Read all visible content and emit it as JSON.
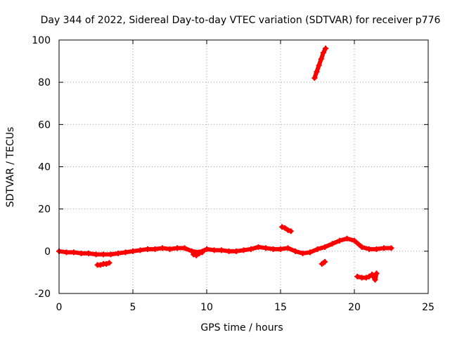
{
  "chart_data": {
    "type": "scatter",
    "title": "Day 344 of 2022, Sidereal Day-to-day VTEC variation (SDTVAR) for receiver p776",
    "xlabel": "GPS time / hours",
    "ylabel": "SDTVAR / TECUs",
    "xlim": [
      0,
      25
    ],
    "ylim": [
      -20,
      100
    ],
    "xticks": [
      0,
      5,
      10,
      15,
      20,
      25
    ],
    "yticks": [
      -20,
      0,
      20,
      40,
      60,
      80,
      100
    ],
    "grid": true,
    "marker": "plus",
    "series_color": "#ff0000",
    "segments": [
      {
        "name": "main-trace",
        "x": [
          0.0,
          0.5,
          1.0,
          1.5,
          2.0,
          2.5,
          3.0,
          3.5,
          4.0,
          4.5,
          5.0,
          5.5,
          6.0,
          6.5,
          7.0,
          7.5,
          8.0,
          8.5,
          9.0,
          9.5,
          10.0,
          10.5,
          11.0,
          11.5,
          12.0,
          12.5,
          13.0,
          13.5,
          14.0,
          14.5,
          15.0,
          15.5,
          16.0,
          16.5,
          17.0,
          17.5,
          18.0,
          18.5,
          19.0,
          19.5,
          20.0,
          20.5,
          21.0,
          21.5,
          22.0,
          22.5
        ],
        "y": [
          0.0,
          -0.5,
          -0.5,
          -1.0,
          -1.0,
          -1.5,
          -1.5,
          -1.5,
          -1.0,
          -0.5,
          0.0,
          0.5,
          1.0,
          1.0,
          1.5,
          1.0,
          1.5,
          1.5,
          0.0,
          -0.5,
          1.0,
          0.5,
          0.5,
          0.0,
          0.0,
          0.5,
          1.0,
          2.0,
          1.5,
          1.0,
          1.0,
          1.5,
          0.0,
          -1.0,
          -0.5,
          1.0,
          2.0,
          3.5,
          5.0,
          6.0,
          5.0,
          2.0,
          1.0,
          1.0,
          1.5,
          1.5
        ]
      },
      {
        "name": "dip-near-3h",
        "x": [
          2.6,
          2.8,
          3.0,
          3.2,
          3.4
        ],
        "y": [
          -6.5,
          -6.5,
          -6.0,
          -6.0,
          -5.5
        ]
      },
      {
        "name": "gap-cluster-9h",
        "x": [
          9.1,
          9.3,
          9.5,
          9.7
        ],
        "y": [
          -1.5,
          -2.0,
          -1.0,
          -0.5
        ]
      },
      {
        "name": "bump-15h",
        "x": [
          15.1,
          15.3,
          15.5,
          15.7
        ],
        "y": [
          11.5,
          11.0,
          10.0,
          9.5
        ]
      },
      {
        "name": "dip-near-18h",
        "x": [
          17.8,
          17.9,
          18.0
        ],
        "y": [
          -6.0,
          -5.5,
          -5.0
        ]
      },
      {
        "name": "steep-rise",
        "x": [
          17.3,
          17.45,
          17.6,
          17.75,
          17.9,
          18.05
        ],
        "y": [
          82,
          85,
          88,
          91,
          94,
          96
        ]
      },
      {
        "name": "dip-near-21h",
        "x": [
          20.2,
          20.5,
          20.8,
          21.0,
          21.2,
          21.4,
          21.5
        ],
        "y": [
          -12,
          -12.5,
          -12.5,
          -12,
          -11,
          -13.5,
          -10.5
        ]
      }
    ]
  }
}
